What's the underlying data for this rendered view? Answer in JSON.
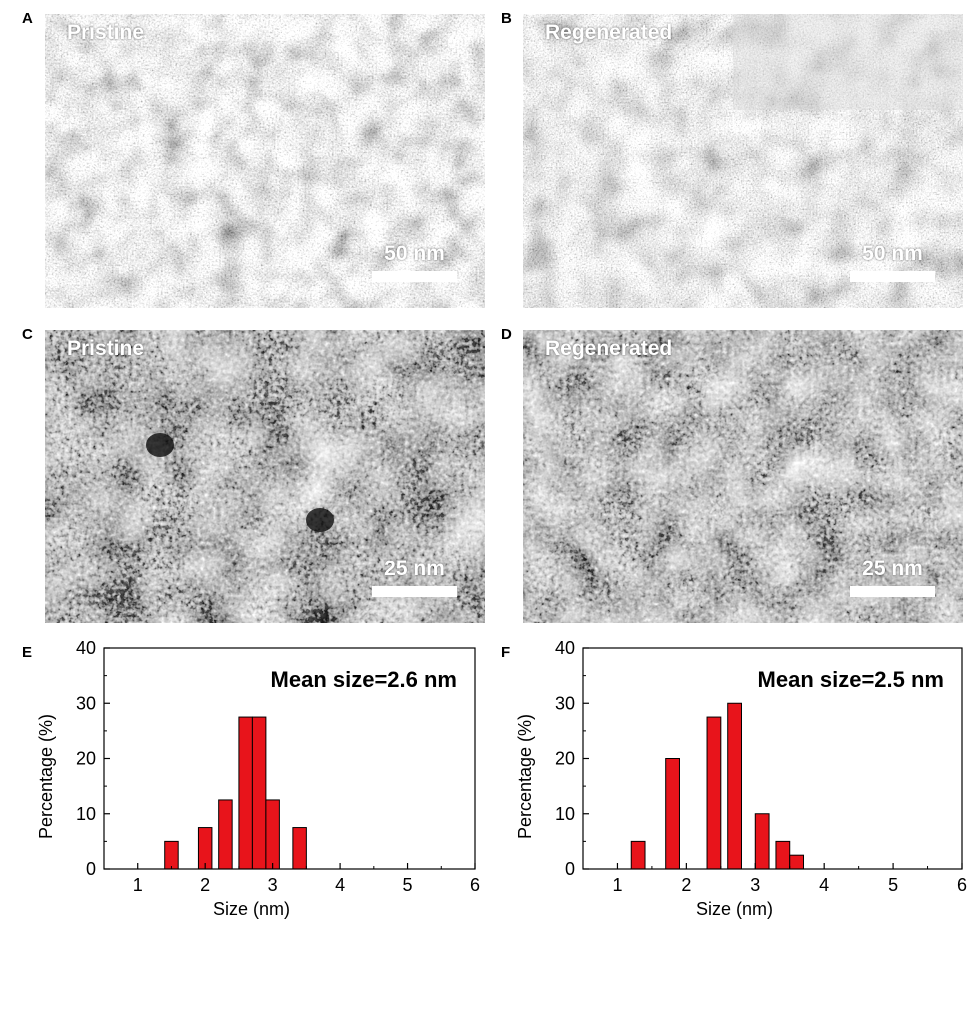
{
  "panels": {
    "A": {
      "letter": "A",
      "label": "Pristine",
      "scale": "50 nm"
    },
    "B": {
      "letter": "B",
      "label": "Regenerated",
      "scale": "50 nm"
    },
    "C": {
      "letter": "C",
      "label": "Pristine",
      "scale": "25 nm"
    },
    "D": {
      "letter": "D",
      "label": "Regenerated",
      "scale": "25 nm"
    },
    "E": {
      "letter": "E"
    },
    "F": {
      "letter": "F"
    }
  },
  "colors": {
    "bar_fill": "#e8141b",
    "bar_stroke": "#000000"
  },
  "chart_data": [
    {
      "type": "bar",
      "panel": "E",
      "annotation": "Mean size=2.6 nm",
      "xlabel": "Size (nm)",
      "ylabel": "Percentage (%)",
      "xlim": [
        0.5,
        6
      ],
      "ylim": [
        0,
        40
      ],
      "xticks": [
        1,
        2,
        3,
        4,
        5,
        6
      ],
      "yticks": [
        0,
        10,
        20,
        30,
        40
      ],
      "bar_width": 0.2,
      "x": [
        1.5,
        2.0,
        2.3,
        2.6,
        2.8,
        3.0,
        3.4
      ],
      "values": [
        5,
        7.5,
        12.5,
        27.5,
        27.5,
        12.5,
        7.5
      ]
    },
    {
      "type": "bar",
      "panel": "F",
      "annotation": "Mean size=2.5 nm",
      "xlabel": "Size (nm)",
      "ylabel": "Percentage (%)",
      "xlim": [
        0.5,
        6
      ],
      "ylim": [
        0,
        40
      ],
      "xticks": [
        1,
        2,
        3,
        4,
        5,
        6
      ],
      "yticks": [
        0,
        10,
        20,
        30,
        40
      ],
      "bar_width": 0.2,
      "x": [
        1.3,
        1.8,
        2.4,
        2.7,
        3.1,
        3.4,
        3.6
      ],
      "values": [
        5,
        20,
        27.5,
        30,
        10,
        5,
        2.5
      ]
    }
  ]
}
